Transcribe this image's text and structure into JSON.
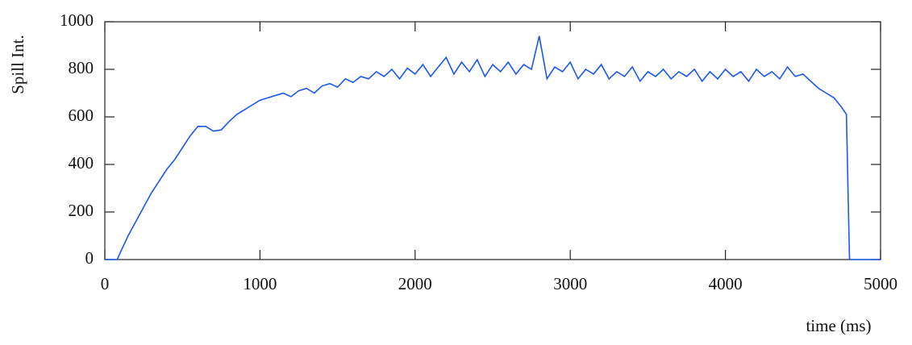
{
  "chart_data": {
    "type": "line",
    "x_label": "time (ms)",
    "y_label": "Spill Int.",
    "x": [
      0,
      50,
      80,
      100,
      150,
      200,
      250,
      300,
      350,
      400,
      450,
      500,
      550,
      600,
      650,
      700,
      750,
      800,
      850,
      900,
      950,
      1000,
      1050,
      1100,
      1150,
      1200,
      1250,
      1300,
      1350,
      1400,
      1450,
      1500,
      1550,
      1600,
      1650,
      1700,
      1750,
      1800,
      1850,
      1900,
      1950,
      2000,
      2050,
      2100,
      2150,
      2200,
      2250,
      2300,
      2350,
      2400,
      2450,
      2500,
      2550,
      2600,
      2650,
      2700,
      2750,
      2800,
      2850,
      2900,
      2950,
      3000,
      3050,
      3100,
      3150,
      3200,
      3250,
      3300,
      3350,
      3400,
      3450,
      3500,
      3550,
      3600,
      3650,
      3700,
      3750,
      3800,
      3850,
      3900,
      3950,
      4000,
      4050,
      4100,
      4150,
      4200,
      4250,
      4300,
      4350,
      4400,
      4450,
      4500,
      4550,
      4600,
      4650,
      4700,
      4750,
      4780,
      4790,
      4800,
      4850,
      5000
    ],
    "series": [
      {
        "color": "#1a56f0",
        "values": [
          0,
          0,
          0,
          30,
          100,
          160,
          220,
          280,
          330,
          380,
          420,
          470,
          520,
          560,
          560,
          540,
          545,
          580,
          610,
          630,
          650,
          670,
          680,
          690,
          700,
          685,
          710,
          720,
          700,
          730,
          740,
          725,
          760,
          745,
          770,
          760,
          790,
          770,
          800,
          760,
          805,
          780,
          820,
          770,
          810,
          850,
          780,
          830,
          790,
          840,
          770,
          820,
          790,
          830,
          780,
          820,
          800,
          940,
          760,
          810,
          790,
          830,
          760,
          800,
          780,
          820,
          760,
          790,
          770,
          810,
          750,
          790,
          770,
          800,
          760,
          790,
          770,
          800,
          750,
          790,
          760,
          800,
          770,
          790,
          750,
          800,
          770,
          790,
          760,
          810,
          770,
          780,
          750,
          720,
          700,
          680,
          640,
          610,
          300,
          0,
          0,
          0
        ]
      }
    ],
    "xlim": [
      0,
      5000
    ],
    "xticks": [
      0,
      1000,
      2000,
      3000,
      4000,
      5000
    ],
    "ylim": [
      0,
      1000
    ],
    "yticks": [
      0,
      200,
      400,
      600,
      800,
      1000
    ]
  }
}
